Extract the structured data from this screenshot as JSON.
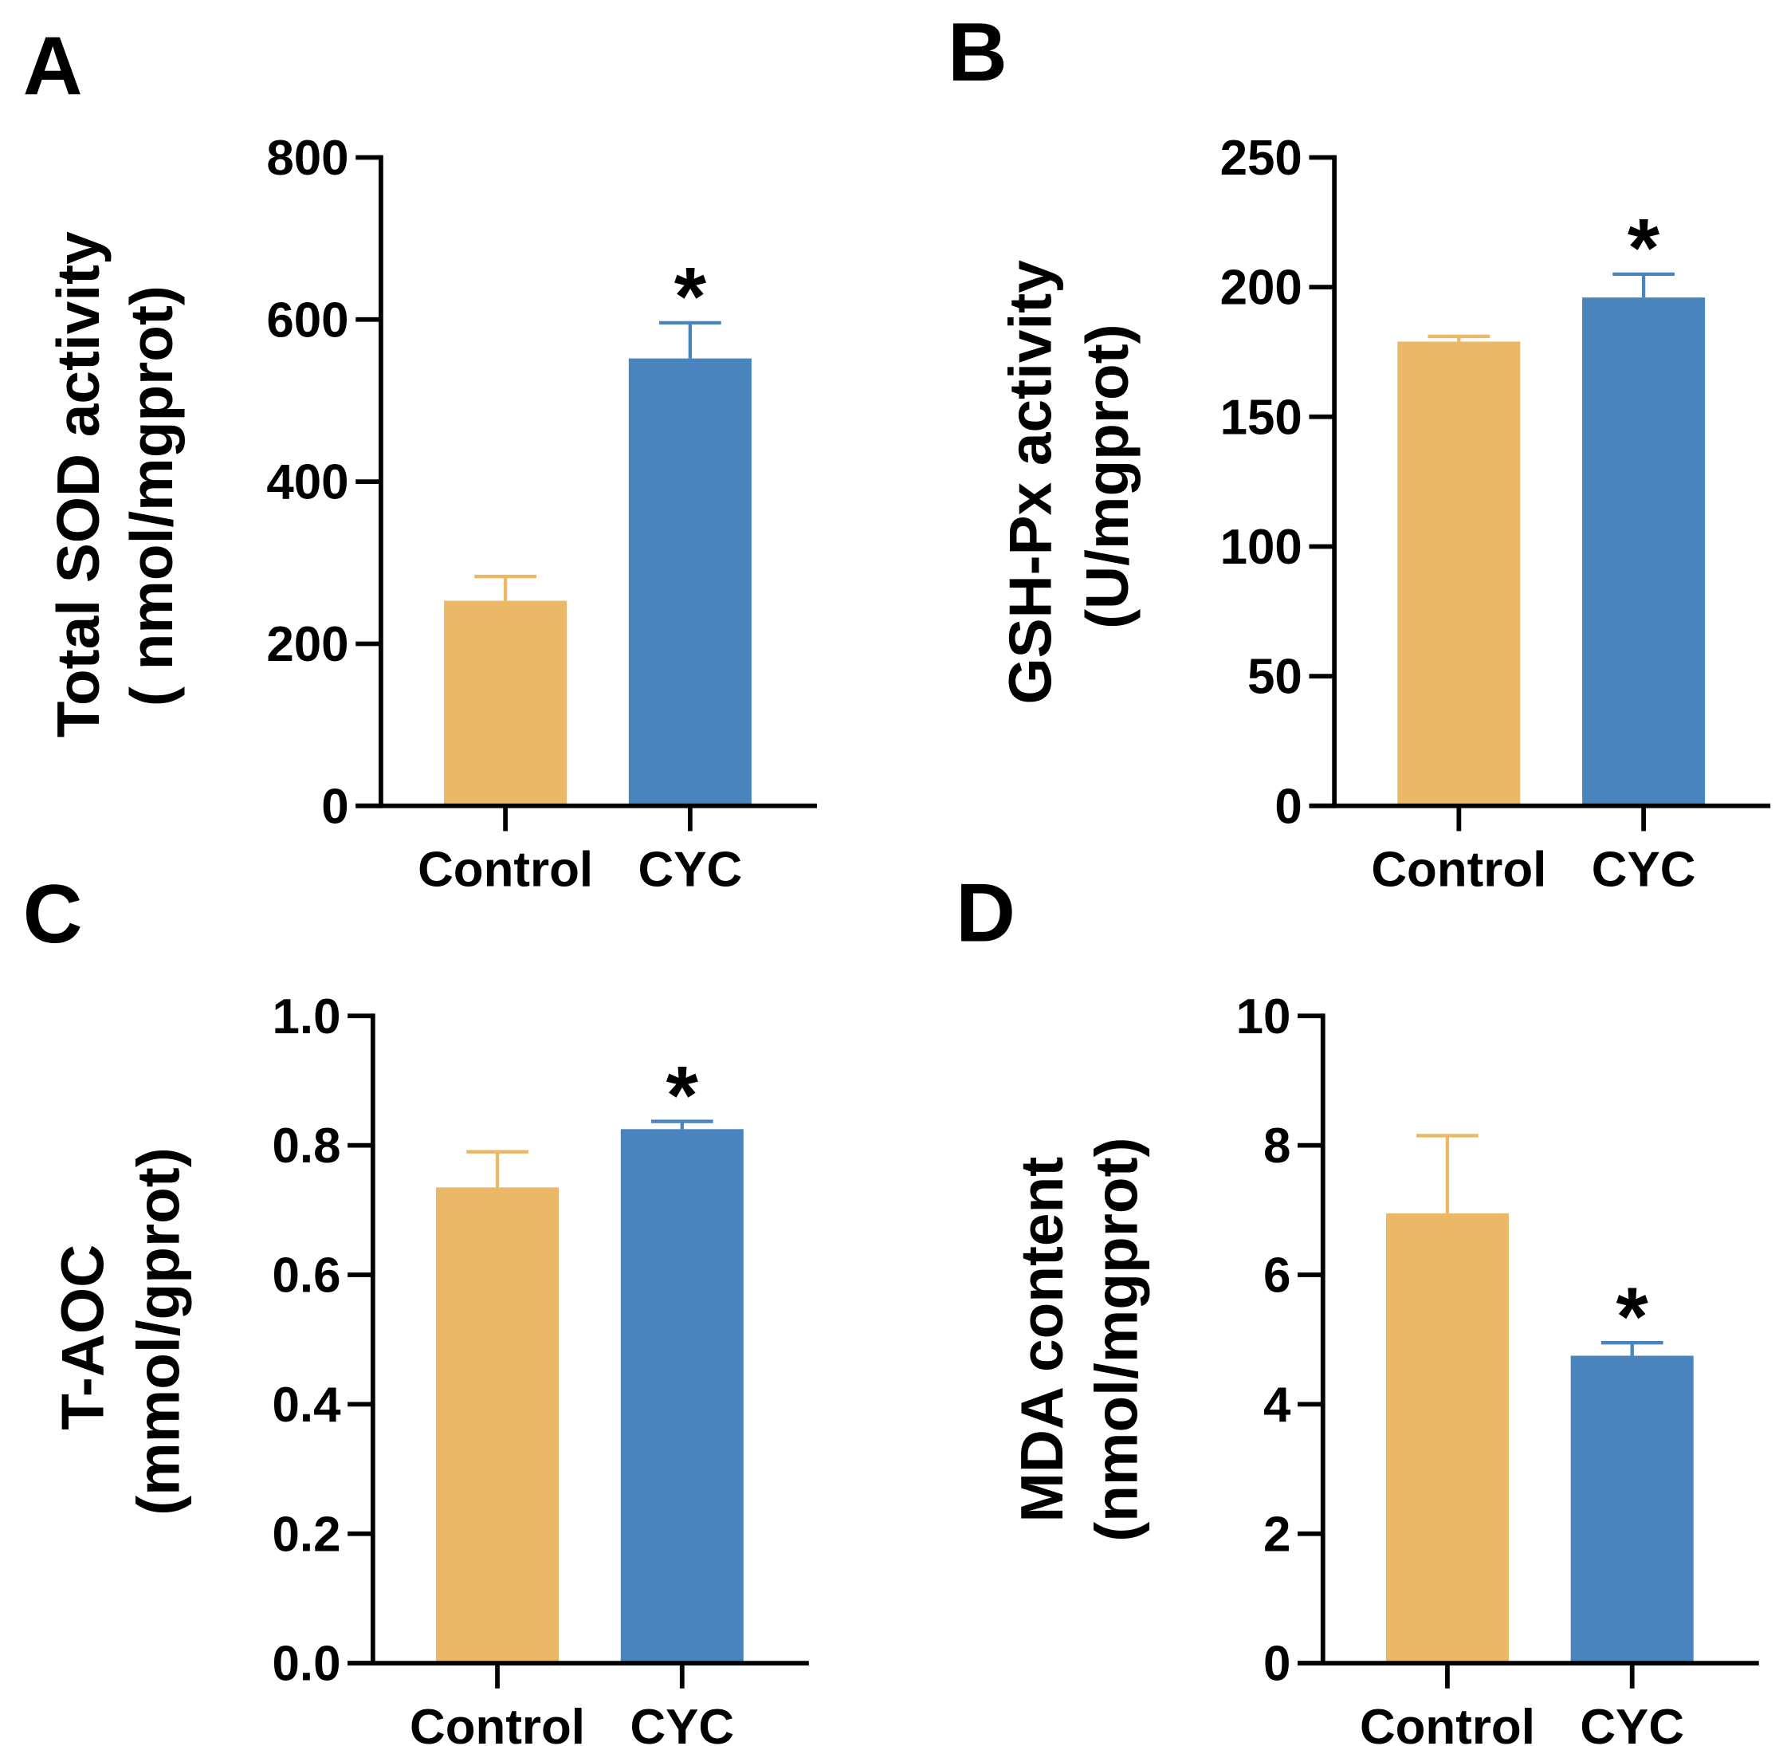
{
  "colors": {
    "background": "#ffffff",
    "axis": "#000000",
    "bars": [
      "#EAB866",
      "#4A84BF"
    ]
  },
  "chart_data": [
    {
      "panel": "A",
      "type": "bar",
      "categories": [
        "Control",
        "CYC"
      ],
      "values": [
        253,
        552
      ],
      "errors": [
        30,
        44
      ],
      "significant": [
        false,
        true
      ],
      "significance_marker": "*",
      "ylabel_lines": [
        "Total SOD activity",
        "( nmol/mgprot)"
      ],
      "xlabel": "",
      "ylim": [
        0,
        800
      ],
      "yticks": [
        0,
        200,
        400,
        600,
        800
      ],
      "ytick_labels": [
        "0",
        "200",
        "400",
        "600",
        "800"
      ]
    },
    {
      "panel": "B",
      "type": "bar",
      "categories": [
        "Control",
        "CYC"
      ],
      "values": [
        179,
        196
      ],
      "errors": [
        2,
        9
      ],
      "significant": [
        false,
        true
      ],
      "significance_marker": "*",
      "ylabel_lines": [
        "GSH-Px activity",
        "(U/mgprot)"
      ],
      "xlabel": "",
      "ylim": [
        0,
        250
      ],
      "yticks": [
        0,
        50,
        100,
        150,
        200,
        250
      ],
      "ytick_labels": [
        "0",
        "50",
        "100",
        "150",
        "200",
        "250"
      ]
    },
    {
      "panel": "C",
      "type": "bar",
      "categories": [
        "Control",
        "CYC"
      ],
      "values": [
        0.735,
        0.825
      ],
      "errors": [
        0.055,
        0.012
      ],
      "significant": [
        false,
        true
      ],
      "significance_marker": "*",
      "ylabel_lines": [
        "T-AOC",
        "(mmol/gprot)"
      ],
      "xlabel": "",
      "ylim": [
        0,
        1.0
      ],
      "yticks": [
        0,
        0.2,
        0.4,
        0.6,
        0.8,
        1.0
      ],
      "ytick_labels": [
        "0.0",
        "0.2",
        "0.4",
        "0.6",
        "0.8",
        "1.0"
      ]
    },
    {
      "panel": "D",
      "type": "bar",
      "categories": [
        "Control",
        "CYC"
      ],
      "values": [
        6.95,
        4.75
      ],
      "errors": [
        1.2,
        0.2
      ],
      "significant": [
        false,
        true
      ],
      "significance_marker": "*",
      "ylabel_lines": [
        "MDA content",
        "(nmol/mgprot)"
      ],
      "xlabel": "",
      "ylim": [
        0,
        10
      ],
      "yticks": [
        0,
        2,
        4,
        6,
        8,
        10
      ],
      "ytick_labels": [
        "0",
        "2",
        "4",
        "6",
        "8",
        "10"
      ]
    }
  ]
}
